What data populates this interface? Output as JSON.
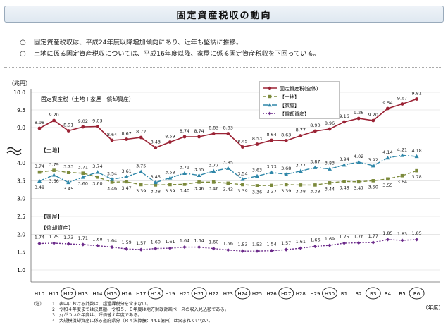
{
  "page": {
    "title": "固定資産税収の動向",
    "bullets": [
      {
        "mark": "○",
        "text": "固定資産税収は、平成24年度以降増加傾向にあり、近年も堅調に推移。"
      },
      {
        "mark": "○",
        "text": "土地に係る固定資産税収については、平成16年度以降、家屋に係る固定資産税収を下回っている。"
      }
    ],
    "notes_label": "（注）",
    "notes": [
      {
        "n": "1",
        "text": "表中における計数は、超過課税分を含まない。"
      },
      {
        "n": "2",
        "text": "令和４年度までは決算額、令和５、６年度は地方財政計画ベースの収入見込額である。"
      },
      {
        "n": "3",
        "text": "丸がついた年度は、評価替え年度である。"
      },
      {
        "n": "4",
        "text": "大規模償却資産に係る道府県分（Ｒ４決算額：44.1億円）は含まれていない。"
      }
    ]
  },
  "chart_data": {
    "type": "line",
    "unit_label": "（兆円）",
    "xlabel": "（年度）",
    "categories": [
      "H10",
      "H11",
      "H12",
      "H13",
      "H14",
      "H15",
      "H16",
      "H17",
      "H18",
      "H19",
      "H20",
      "H21",
      "H22",
      "H23",
      "H24",
      "H25",
      "H26",
      "H27",
      "H28",
      "H29",
      "H30",
      "R1",
      "R2",
      "R3",
      "R4",
      "R5",
      "R6"
    ],
    "circled_categories": [
      "H12",
      "H15",
      "H18",
      "H21",
      "H24",
      "H27",
      "H30",
      "R3",
      "R6"
    ],
    "upper_panel": {
      "label": "固定資産税（土地＋家屋＋償却資産）",
      "yticks": [
        9.0,
        9.5,
        10.0
      ],
      "ylim": [
        8.9,
        10.0
      ]
    },
    "lower_panel": {
      "yticks": [
        1.0,
        1.5,
        2.0,
        2.5,
        3.0,
        3.5,
        4.0
      ],
      "ylim": [
        0.9,
        4.0
      ],
      "labels": [
        "【土地】",
        "【家屋】",
        "【償却資産】"
      ]
    },
    "legend_position": "top-right",
    "series": [
      {
        "name": "固定資産税(全体)",
        "color": "#9b2335",
        "marker": "circle",
        "dash": "",
        "values": [
          8.98,
          9.2,
          8.91,
          9.02,
          9.03,
          8.64,
          8.67,
          8.72,
          8.43,
          8.59,
          8.74,
          8.74,
          8.83,
          8.83,
          8.45,
          8.53,
          8.64,
          8.63,
          8.77,
          8.9,
          8.96,
          9.16,
          9.26,
          9.2,
          9.54,
          9.67,
          9.81
        ]
      },
      {
        "name": "【土地】",
        "color": "#7c8a3c",
        "marker": "square",
        "dash": "5,3",
        "values": [
          3.74,
          3.79,
          3.73,
          3.71,
          3.6,
          3.46,
          3.47,
          3.39,
          3.38,
          3.39,
          3.4,
          3.46,
          3.46,
          3.43,
          3.39,
          3.36,
          3.37,
          3.39,
          3.38,
          3.38,
          3.44,
          3.48,
          3.47,
          3.5,
          3.55,
          3.64,
          3.78
        ]
      },
      {
        "name": "【家屋】",
        "color": "#2e86a8",
        "marker": "triangle",
        "dash": "7,2,2,2",
        "values": [
          3.49,
          3.66,
          3.45,
          3.6,
          3.74,
          3.54,
          3.61,
          3.75,
          3.45,
          3.58,
          3.71,
          3.65,
          3.77,
          3.85,
          3.54,
          3.63,
          3.73,
          3.68,
          3.77,
          3.87,
          3.83,
          3.94,
          4.02,
          3.92,
          4.14,
          4.21,
          4.18
        ]
      },
      {
        "name": "【償却資産】",
        "color": "#6b2a8a",
        "marker": "diamond",
        "dash": "2,2",
        "values": [
          1.74,
          1.75,
          1.73,
          1.71,
          1.68,
          1.64,
          1.59,
          1.57,
          1.6,
          1.61,
          1.64,
          1.64,
          1.6,
          1.56,
          1.53,
          1.53,
          1.54,
          1.57,
          1.61,
          1.66,
          1.69,
          1.75,
          1.76,
          1.77,
          1.85,
          1.83,
          1.85
        ]
      }
    ]
  }
}
